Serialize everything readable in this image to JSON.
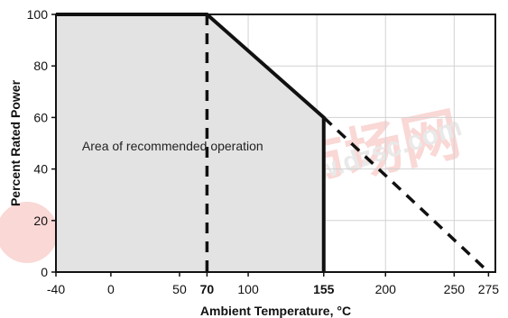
{
  "chart_data": {
    "type": "line",
    "title": "",
    "xlabel": "Ambient Temperature, °C",
    "ylabel": "Percent Rated Power",
    "xlim": [
      -40,
      280
    ],
    "ylim": [
      0,
      100
    ],
    "x_ticks": [
      -40,
      0,
      50,
      70,
      100,
      155,
      200,
      250,
      275
    ],
    "x_tick_labels": [
      "-40",
      "0",
      "50",
      "70",
      "100",
      "155",
      "200",
      "250",
      "275"
    ],
    "x_tick_bold": [
      false,
      false,
      false,
      true,
      false,
      true,
      false,
      false,
      false
    ],
    "y_ticks": [
      0,
      20,
      40,
      60,
      80,
      100
    ],
    "y_tick_labels": [
      "0",
      "20",
      "40",
      "60",
      "80",
      "100"
    ],
    "grid": true,
    "series": [
      {
        "style": "solid",
        "x": [
          -40,
          70,
          155,
          155
        ],
        "y": [
          100,
          100,
          60,
          0
        ]
      },
      {
        "style": "dashed",
        "x": [
          155,
          275
        ],
        "y": [
          60,
          0
        ]
      },
      {
        "style": "dashed",
        "x": [
          70,
          70
        ],
        "y": [
          100,
          0
        ]
      }
    ],
    "shaded_region": {
      "x": [
        -40,
        70,
        155,
        155,
        -40
      ],
      "y": [
        100,
        100,
        60,
        0,
        0
      ],
      "color": "#e3e3e3"
    },
    "annotations": [
      {
        "text": "Area of recommended operation",
        "x": -21,
        "y": 49
      }
    ]
  },
  "watermark": {
    "text_cn": "维库电子市场网",
    "text_url": "www.dzsc.com",
    "color": "#e03020"
  }
}
